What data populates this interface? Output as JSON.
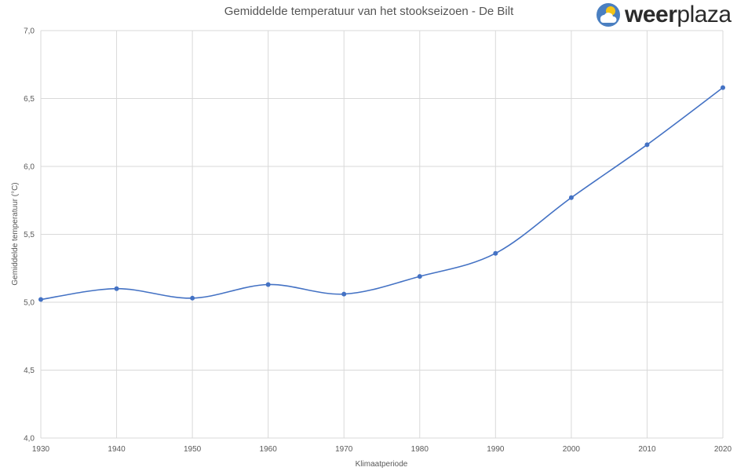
{
  "chart_data": {
    "type": "line",
    "title": "Gemiddelde temperatuur van het stookseizoen - De Bilt",
    "xlabel": "Klimaatperiode",
    "ylabel": "Gemiddelde temperatuur (°C)",
    "categories": [
      "1930",
      "1940",
      "1950",
      "1960",
      "1970",
      "1980",
      "1990",
      "2000",
      "2010",
      "2020"
    ],
    "series": [
      {
        "name": "De Bilt",
        "values": [
          5.02,
          5.1,
          5.03,
          5.13,
          5.06,
          5.19,
          5.36,
          5.77,
          6.16,
          6.58
        ]
      }
    ],
    "ylim": [
      4.0,
      7.0
    ],
    "yticks": [
      4.0,
      4.5,
      5.0,
      5.5,
      6.0,
      6.5,
      7.0
    ],
    "ytick_labels": [
      "4,0",
      "4,5",
      "5,0",
      "5,5",
      "6,0",
      "6,5",
      "7,0"
    ],
    "grid": true,
    "smooth": true
  },
  "brand": {
    "name_bold": "weer",
    "name_light": "plaza",
    "icon": "sun-cloud-icon"
  },
  "colors": {
    "line": "#4472C4",
    "grid": "#D9D9D9",
    "logo_circle": "#4a7fc1",
    "logo_sun": "#f5c518"
  }
}
